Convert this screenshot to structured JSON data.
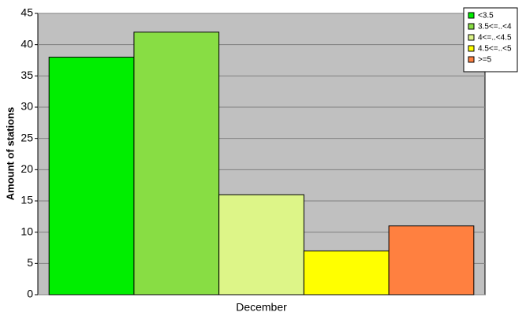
{
  "chart_data": {
    "type": "bar",
    "y_label": "Amount of stations",
    "categories": [
      "December"
    ],
    "series": [
      {
        "name": "<3.5",
        "color": "#00ee00",
        "values": [
          38
        ]
      },
      {
        "name": "3.5<=..<4",
        "color": "#88dd44",
        "values": [
          42
        ]
      },
      {
        "name": "4<=..<4.5",
        "color": "#ddf588",
        "values": [
          16
        ]
      },
      {
        "name": "4.5<=..<5",
        "color": "#ffff00",
        "values": [
          7
        ]
      },
      {
        "name": ">=5",
        "color": "#ff8040",
        "values": [
          11
        ]
      }
    ],
    "ylim": [
      0,
      45
    ],
    "yticks": [
      0,
      5,
      10,
      15,
      20,
      25,
      30,
      35,
      40,
      45
    ],
    "grid": true,
    "legend": "top-right"
  }
}
